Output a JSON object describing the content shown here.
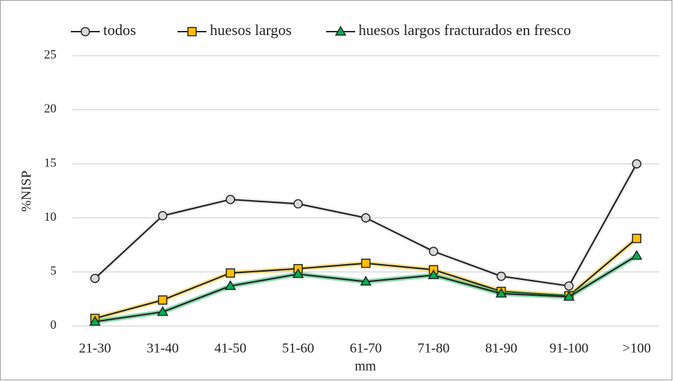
{
  "chart_data": {
    "type": "line",
    "categories": [
      "21-30",
      "31-40",
      "41-50",
      "51-60",
      "61-70",
      "71-80",
      "81-90",
      "91-100",
      ">100"
    ],
    "series": [
      {
        "name": "todos",
        "color": "#d9d9d9",
        "marker": "circle",
        "values": [
          4.4,
          10.2,
          11.7,
          11.3,
          10.0,
          6.9,
          4.6,
          3.7,
          15.0
        ]
      },
      {
        "name": "huesos largos",
        "color": "#ffc000",
        "marker": "square",
        "values": [
          0.7,
          2.4,
          4.9,
          5.3,
          5.8,
          5.2,
          3.2,
          2.8,
          8.1
        ]
      },
      {
        "name": "huesos largos fracturados en fresco",
        "color": "#00b050",
        "marker": "triangle",
        "values": [
          0.4,
          1.3,
          3.7,
          4.8,
          4.1,
          4.7,
          3.0,
          2.7,
          6.5
        ]
      }
    ],
    "xlabel": "mm",
    "ylabel": "%NISP",
    "ylim": [
      0,
      25
    ],
    "yticks": [
      0,
      5,
      10,
      15,
      20,
      25
    ],
    "grid": true,
    "legend": "top"
  }
}
